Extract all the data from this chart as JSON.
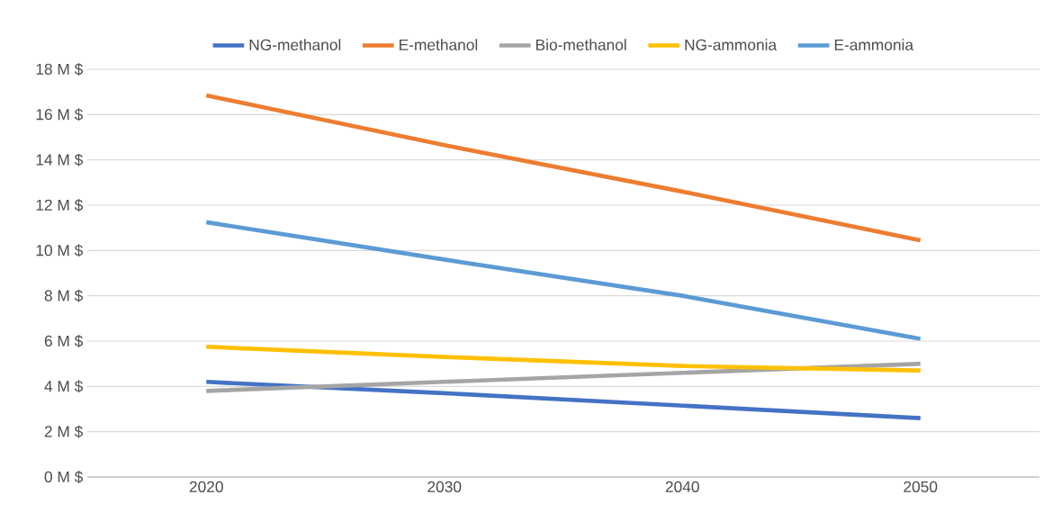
{
  "chart_data": {
    "type": "line",
    "categories": [
      "2020",
      "2030",
      "2040",
      "2050"
    ],
    "series": [
      {
        "name": "NG-methanol",
        "color": "#4472c4",
        "values": [
          4.2,
          3.7,
          3.15,
          2.6
        ]
      },
      {
        "name": "E-methanol",
        "color": "#ed7d31",
        "values": [
          16.85,
          14.65,
          12.6,
          10.45
        ]
      },
      {
        "name": "Bio-methanol",
        "color": "#a5a5a5",
        "values": [
          3.8,
          4.2,
          4.6,
          5.0
        ]
      },
      {
        "name": "NG-ammonia",
        "color": "#ffc000",
        "values": [
          5.75,
          5.3,
          4.9,
          4.7
        ]
      },
      {
        "name": "E-ammonia",
        "color": "#5b9bd5",
        "values": [
          11.25,
          9.6,
          8.0,
          6.1
        ]
      }
    ],
    "ylim": [
      0,
      18
    ],
    "yticks": [
      {
        "value": 0,
        "label": "0 M $"
      },
      {
        "value": 2,
        "label": "2 M $"
      },
      {
        "value": 4,
        "label": "4 M $"
      },
      {
        "value": 6,
        "label": "6 M $"
      },
      {
        "value": 8,
        "label": "8 M $"
      },
      {
        "value": 10,
        "label": "10 M $"
      },
      {
        "value": 12,
        "label": "12 M $"
      },
      {
        "value": 14,
        "label": "14 M $"
      },
      {
        "value": 16,
        "label": "16 M $"
      },
      {
        "value": 18,
        "label": "18 M $"
      }
    ],
    "grid": "y",
    "legend": "top",
    "marker": "none",
    "line_style": "solid"
  }
}
